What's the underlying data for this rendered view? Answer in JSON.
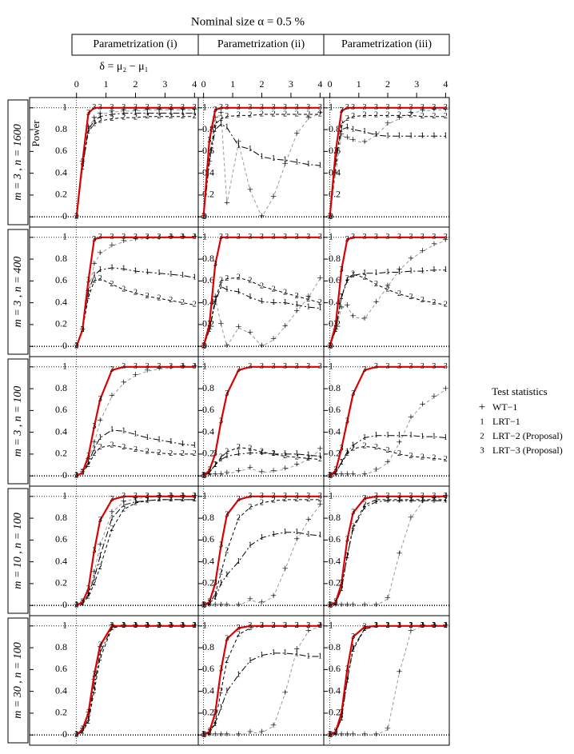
{
  "chart_data": {
    "type": "line",
    "title": "Nominal size α =  0.5 %",
    "x_label": "δ = μ₂ − μ₁",
    "y_label": "Power",
    "legend_title": "Test statistics",
    "column_labels": [
      "Parametrization (i)",
      "Parametrization (ii)",
      "Parametrization (iii)"
    ],
    "row_labels": [
      "m = 3 ,   n = 1600",
      "m = 3 ,   n = 400",
      "m = 3 ,   n = 100",
      "m = 10 ,   n = 100",
      "m = 30 ,   n = 100"
    ],
    "series": [
      {
        "name": "WT−1",
        "symbol": "+",
        "color": "#999999",
        "dash": "4,3",
        "width": 1
      },
      {
        "name": "LRT−1",
        "symbol": "1",
        "color": "#000000",
        "dash": "8,3,2,3",
        "width": 1
      },
      {
        "name": "LRT−2 (Proposal)",
        "symbol": "2",
        "color": "#000000",
        "dash": "4,3",
        "width": 1
      },
      {
        "name": "LRT−3 (Proposal)",
        "symbol": "3",
        "color": "#dd0000",
        "dash": "",
        "width": 2.2
      }
    ],
    "x": [
      0,
      0.2,
      0.4,
      0.6,
      0.8,
      1.2,
      1.6,
      2,
      2.4,
      2.8,
      3.2,
      3.6,
      4
    ],
    "xlim": [
      -0.1,
      4.1
    ],
    "xticks": [
      0,
      1,
      2,
      3,
      4
    ],
    "ylim": [
      -0.05,
      1.05
    ],
    "yticks": [
      0,
      0.2,
      0.4,
      0.6,
      0.8,
      1
    ],
    "ref_lines": {
      "x": [
        0
      ],
      "y": [
        0,
        1
      ]
    },
    "panels": [
      {
        "values": [
          [
            0,
            0.5,
            0.82,
            0.9,
            0.94,
            0.96,
            0.97,
            0.97,
            0.98,
            0.98,
            0.98,
            0.98,
            0.98
          ],
          [
            0,
            0.45,
            0.8,
            0.88,
            0.92,
            0.94,
            0.95,
            0.95,
            0.95,
            0.95,
            0.95,
            0.95,
            0.95
          ],
          [
            0,
            0.45,
            0.78,
            0.85,
            0.88,
            0.9,
            0.91,
            0.91,
            0.92,
            0.92,
            0.92,
            0.92,
            0.92
          ],
          [
            0,
            0.5,
            0.95,
            1,
            1,
            1,
            1,
            1,
            1,
            1,
            1,
            1,
            1
          ]
        ]
      },
      {
        "values": [
          [
            0,
            0.5,
            0.9,
            0.95,
            0.12,
            0.68,
            0.24,
            0,
            0.18,
            0.48,
            0.76,
            0.9,
            0.95
          ],
          [
            0,
            0.5,
            0.8,
            0.85,
            0.82,
            0.65,
            0.62,
            0.55,
            0.53,
            0.52,
            0.5,
            0.48,
            0.47
          ],
          [
            0,
            0.55,
            0.85,
            0.9,
            0.92,
            0.93,
            0.93,
            0.94,
            0.94,
            0.94,
            0.94,
            0.94,
            0.94
          ],
          [
            0,
            0.7,
            0.98,
            1,
            1,
            1,
            1,
            1,
            1,
            1,
            1,
            1,
            1
          ]
        ]
      },
      {
        "values": [
          [
            0,
            0.4,
            0.75,
            0.72,
            0.7,
            0.68,
            0.75,
            0.85,
            0.9,
            0.95,
            0.97,
            0.98,
            0.98
          ],
          [
            0,
            0.5,
            0.8,
            0.82,
            0.8,
            0.78,
            0.75,
            0.74,
            0.74,
            0.74,
            0.74,
            0.74,
            0.74
          ],
          [
            0,
            0.5,
            0.85,
            0.9,
            0.92,
            0.93,
            0.93,
            0.93,
            0.93,
            0.93,
            0.92,
            0.92,
            0.92
          ],
          [
            0,
            0.6,
            0.97,
            1,
            1,
            1,
            1,
            1,
            1,
            1,
            1,
            1,
            1
          ]
        ]
      },
      {
        "values": [
          [
            0,
            0.15,
            0.5,
            0.75,
            0.85,
            0.92,
            0.96,
            0.98,
            0.99,
            0.99,
            1,
            1,
            1
          ],
          [
            0,
            0.15,
            0.5,
            0.65,
            0.7,
            0.72,
            0.71,
            0.69,
            0.68,
            0.67,
            0.66,
            0.65,
            0.63
          ],
          [
            0,
            0.15,
            0.45,
            0.6,
            0.62,
            0.57,
            0.52,
            0.49,
            0.46,
            0.44,
            0.42,
            0.4,
            0.38
          ],
          [
            0,
            0.15,
            0.6,
            0.98,
            1,
            1,
            1,
            1,
            1,
            1,
            1,
            1,
            1
          ]
        ]
      },
      {
        "values": [
          [
            0,
            0.15,
            0.45,
            0.2,
            0,
            0.17,
            0.12,
            0,
            0.06,
            0.18,
            0.32,
            0.45,
            0.62
          ],
          [
            0,
            0.15,
            0.4,
            0.55,
            0.52,
            0.5,
            0.45,
            0.41,
            0.4,
            0.4,
            0.38,
            0.36,
            0.35
          ],
          [
            0,
            0.15,
            0.42,
            0.6,
            0.62,
            0.63,
            0.6,
            0.55,
            0.52,
            0.49,
            0.46,
            0.43,
            0.4
          ],
          [
            0,
            0.2,
            0.75,
            1,
            1,
            1,
            1,
            1,
            1,
            1,
            1,
            1,
            1
          ]
        ]
      },
      {
        "values": [
          [
            0,
            0.15,
            0.35,
            0.37,
            0.27,
            0.25,
            0.4,
            0.55,
            0.7,
            0.8,
            0.87,
            0.93,
            0.97
          ],
          [
            0,
            0.15,
            0.45,
            0.6,
            0.65,
            0.67,
            0.67,
            0.68,
            0.68,
            0.69,
            0.69,
            0.7,
            0.7
          ],
          [
            0,
            0.15,
            0.45,
            0.62,
            0.66,
            0.63,
            0.57,
            0.52,
            0.48,
            0.45,
            0.42,
            0.4,
            0.38
          ],
          [
            0,
            0.2,
            0.7,
            0.98,
            1,
            1,
            1,
            1,
            1,
            1,
            1,
            1,
            1
          ]
        ]
      },
      {
        "values": [
          [
            0,
            0.03,
            0.15,
            0.3,
            0.5,
            0.73,
            0.85,
            0.92,
            0.96,
            0.98,
            0.99,
            1,
            1
          ],
          [
            0,
            0.03,
            0.12,
            0.25,
            0.35,
            0.42,
            0.41,
            0.38,
            0.35,
            0.33,
            0.31,
            0.29,
            0.28
          ],
          [
            0,
            0.03,
            0.1,
            0.2,
            0.26,
            0.28,
            0.26,
            0.24,
            0.22,
            0.21,
            0.2,
            0.2,
            0.2
          ],
          [
            0,
            0.03,
            0.18,
            0.45,
            0.7,
            0.97,
            1,
            1,
            1,
            1,
            1,
            1,
            1
          ]
        ]
      },
      {
        "values": [
          [
            0,
            0.01,
            0.01,
            0.01,
            0.02,
            0.04,
            0.07,
            0.03,
            0.04,
            0.06,
            0.1,
            0.15,
            0.24
          ],
          [
            0,
            0.03,
            0.1,
            0.15,
            0.18,
            0.2,
            0.21,
            0.21,
            0.2,
            0.2,
            0.2,
            0.19,
            0.18
          ],
          [
            0,
            0.03,
            0.1,
            0.17,
            0.22,
            0.26,
            0.25,
            0.22,
            0.2,
            0.18,
            0.17,
            0.16,
            0.15
          ],
          [
            0,
            0.05,
            0.2,
            0.5,
            0.75,
            0.97,
            1,
            1,
            1,
            1,
            1,
            1,
            1
          ]
        ]
      },
      {
        "values": [
          [
            0,
            0.01,
            0.01,
            0.01,
            0.01,
            0.01,
            0.05,
            0.12,
            0.3,
            0.53,
            0.65,
            0.72,
            0.79
          ],
          [
            0,
            0.03,
            0.12,
            0.22,
            0.28,
            0.35,
            0.37,
            0.37,
            0.37,
            0.37,
            0.36,
            0.36,
            0.35
          ],
          [
            0,
            0.03,
            0.12,
            0.2,
            0.25,
            0.27,
            0.26,
            0.23,
            0.2,
            0.18,
            0.17,
            0.16,
            0.15
          ],
          [
            0,
            0.05,
            0.25,
            0.5,
            0.75,
            0.97,
            1,
            1,
            1,
            1,
            1,
            1,
            1
          ]
        ]
      },
      {
        "values": [
          [
            0,
            0.02,
            0.1,
            0.3,
            0.55,
            0.85,
            0.95,
            0.98,
            0.99,
            1,
            1,
            1,
            1
          ],
          [
            0,
            0.02,
            0.1,
            0.25,
            0.45,
            0.8,
            0.92,
            0.95,
            0.96,
            0.97,
            0.97,
            0.97,
            0.97
          ],
          [
            0,
            0.02,
            0.08,
            0.2,
            0.35,
            0.7,
            0.88,
            0.94,
            0.96,
            0.97,
            0.97,
            0.97,
            0.97
          ],
          [
            0,
            0.03,
            0.15,
            0.5,
            0.78,
            0.97,
            1,
            1,
            1,
            1,
            1,
            1,
            1
          ]
        ]
      },
      {
        "values": [
          [
            0,
            0,
            0,
            0,
            0,
            0,
            0.05,
            0.02,
            0.08,
            0.33,
            0.6,
            0.78,
            0.92
          ],
          [
            0,
            0.02,
            0.07,
            0.2,
            0.28,
            0.4,
            0.55,
            0.62,
            0.65,
            0.67,
            0.67,
            0.65,
            0.64
          ],
          [
            0,
            0.02,
            0.1,
            0.3,
            0.5,
            0.8,
            0.9,
            0.94,
            0.96,
            0.97,
            0.97,
            0.97,
            0.97
          ],
          [
            0,
            0.03,
            0.2,
            0.55,
            0.83,
            0.97,
            1,
            1,
            1,
            1,
            1,
            1,
            1
          ]
        ]
      },
      {
        "values": [
          [
            0,
            0,
            0,
            0,
            0,
            0,
            0,
            0.06,
            0.47,
            0.8,
            0.95,
            0.98,
            1
          ],
          [
            0,
            0.02,
            0.15,
            0.45,
            0.7,
            0.9,
            0.95,
            0.96,
            0.96,
            0.96,
            0.96,
            0.96,
            0.96
          ],
          [
            0,
            0.02,
            0.15,
            0.45,
            0.72,
            0.92,
            0.97,
            0.97,
            0.97,
            0.97,
            0.97,
            0.97,
            0.97
          ],
          [
            0,
            0.03,
            0.2,
            0.6,
            0.85,
            0.98,
            1,
            1,
            1,
            1,
            1,
            1,
            1
          ]
        ]
      },
      {
        "values": [
          [
            0,
            0.05,
            0.2,
            0.5,
            0.8,
            1,
            1,
            1,
            1,
            1,
            1,
            1,
            1
          ],
          [
            0,
            0.03,
            0.15,
            0.45,
            0.75,
            0.99,
            1,
            1,
            1,
            1,
            1,
            1,
            1
          ],
          [
            0,
            0.03,
            0.12,
            0.4,
            0.7,
            0.98,
            1,
            1,
            1,
            1,
            1,
            1,
            1
          ],
          [
            0,
            0.05,
            0.2,
            0.55,
            0.82,
            1,
            1,
            1,
            1,
            1,
            1,
            1,
            1
          ]
        ]
      },
      {
        "values": [
          [
            0,
            0,
            0,
            0,
            0,
            0,
            0.02,
            0.02,
            0.08,
            0.38,
            0.78,
            0.95,
            1
          ],
          [
            0,
            0.02,
            0.1,
            0.25,
            0.4,
            0.55,
            0.68,
            0.73,
            0.75,
            0.75,
            0.74,
            0.72,
            0.72
          ],
          [
            0,
            0.02,
            0.12,
            0.4,
            0.68,
            0.92,
            0.98,
            1,
            1,
            1,
            1,
            1,
            1
          ],
          [
            0,
            0.03,
            0.2,
            0.6,
            0.88,
            0.98,
            1,
            1,
            1,
            1,
            1,
            1,
            1
          ]
        ]
      },
      {
        "values": [
          [
            0,
            0,
            0,
            0,
            0,
            0,
            0,
            0.05,
            0.57,
            0.95,
            1,
            1,
            1
          ],
          [
            0,
            0.02,
            0.15,
            0.5,
            0.8,
            0.97,
            1,
            1,
            1,
            1,
            1,
            1,
            1
          ],
          [
            0,
            0.02,
            0.15,
            0.5,
            0.78,
            0.97,
            1,
            1,
            1,
            1,
            1,
            1,
            1
          ],
          [
            0,
            0.03,
            0.2,
            0.6,
            0.9,
            0.99,
            1,
            1,
            1,
            1,
            1,
            1,
            1
          ]
        ]
      }
    ]
  }
}
